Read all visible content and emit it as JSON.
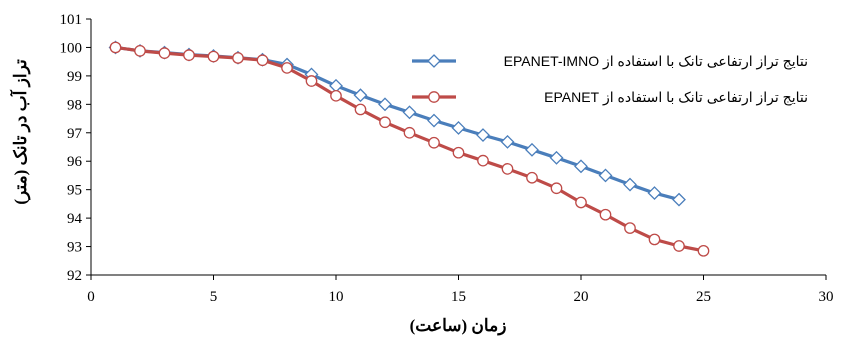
{
  "chart_data": {
    "type": "line",
    "title": "",
    "xlabel": "زمان (ساعت)",
    "ylabel": "تراز آب در تانک (متر)",
    "xlim": [
      0,
      30
    ],
    "ylim": [
      92,
      101
    ],
    "xticks": [
      0,
      5,
      10,
      15,
      20,
      25,
      30
    ],
    "yticks": [
      92,
      93,
      94,
      95,
      96,
      97,
      98,
      99,
      100,
      101
    ],
    "grid": false,
    "legend_position": "top-right",
    "series": [
      {
        "name": "نتایج تراز ارتفاعی تانک با استفاده از EPANET-IMNO",
        "color": "#4a7ebb",
        "marker": "diamond",
        "x": [
          1,
          2,
          3,
          4,
          5,
          6,
          7,
          8,
          9,
          10,
          11,
          12,
          13,
          14,
          15,
          16,
          17,
          18,
          19,
          20,
          21,
          22,
          23,
          24
        ],
        "y": [
          100.0,
          99.88,
          99.82,
          99.75,
          99.7,
          99.64,
          99.57,
          99.4,
          99.05,
          98.65,
          98.32,
          98.0,
          97.72,
          97.43,
          97.17,
          96.92,
          96.68,
          96.4,
          96.12,
          95.82,
          95.5,
          95.18,
          94.88,
          94.65
        ]
      },
      {
        "name": "نتایج تراز ارتفاعی تانک با استفاده از EPANET",
        "color": "#be4b48",
        "marker": "circle",
        "x": [
          1,
          2,
          3,
          4,
          5,
          6,
          7,
          8,
          9,
          10,
          11,
          12,
          13,
          14,
          15,
          16,
          17,
          18,
          19,
          20,
          21,
          22,
          23,
          24,
          25
        ],
        "y": [
          100.0,
          99.88,
          99.8,
          99.73,
          99.68,
          99.63,
          99.55,
          99.28,
          98.82,
          98.3,
          97.82,
          97.37,
          97.0,
          96.65,
          96.3,
          96.02,
          95.73,
          95.42,
          95.05,
          94.55,
          94.12,
          93.65,
          93.25,
          93.02,
          92.85
        ]
      }
    ]
  }
}
